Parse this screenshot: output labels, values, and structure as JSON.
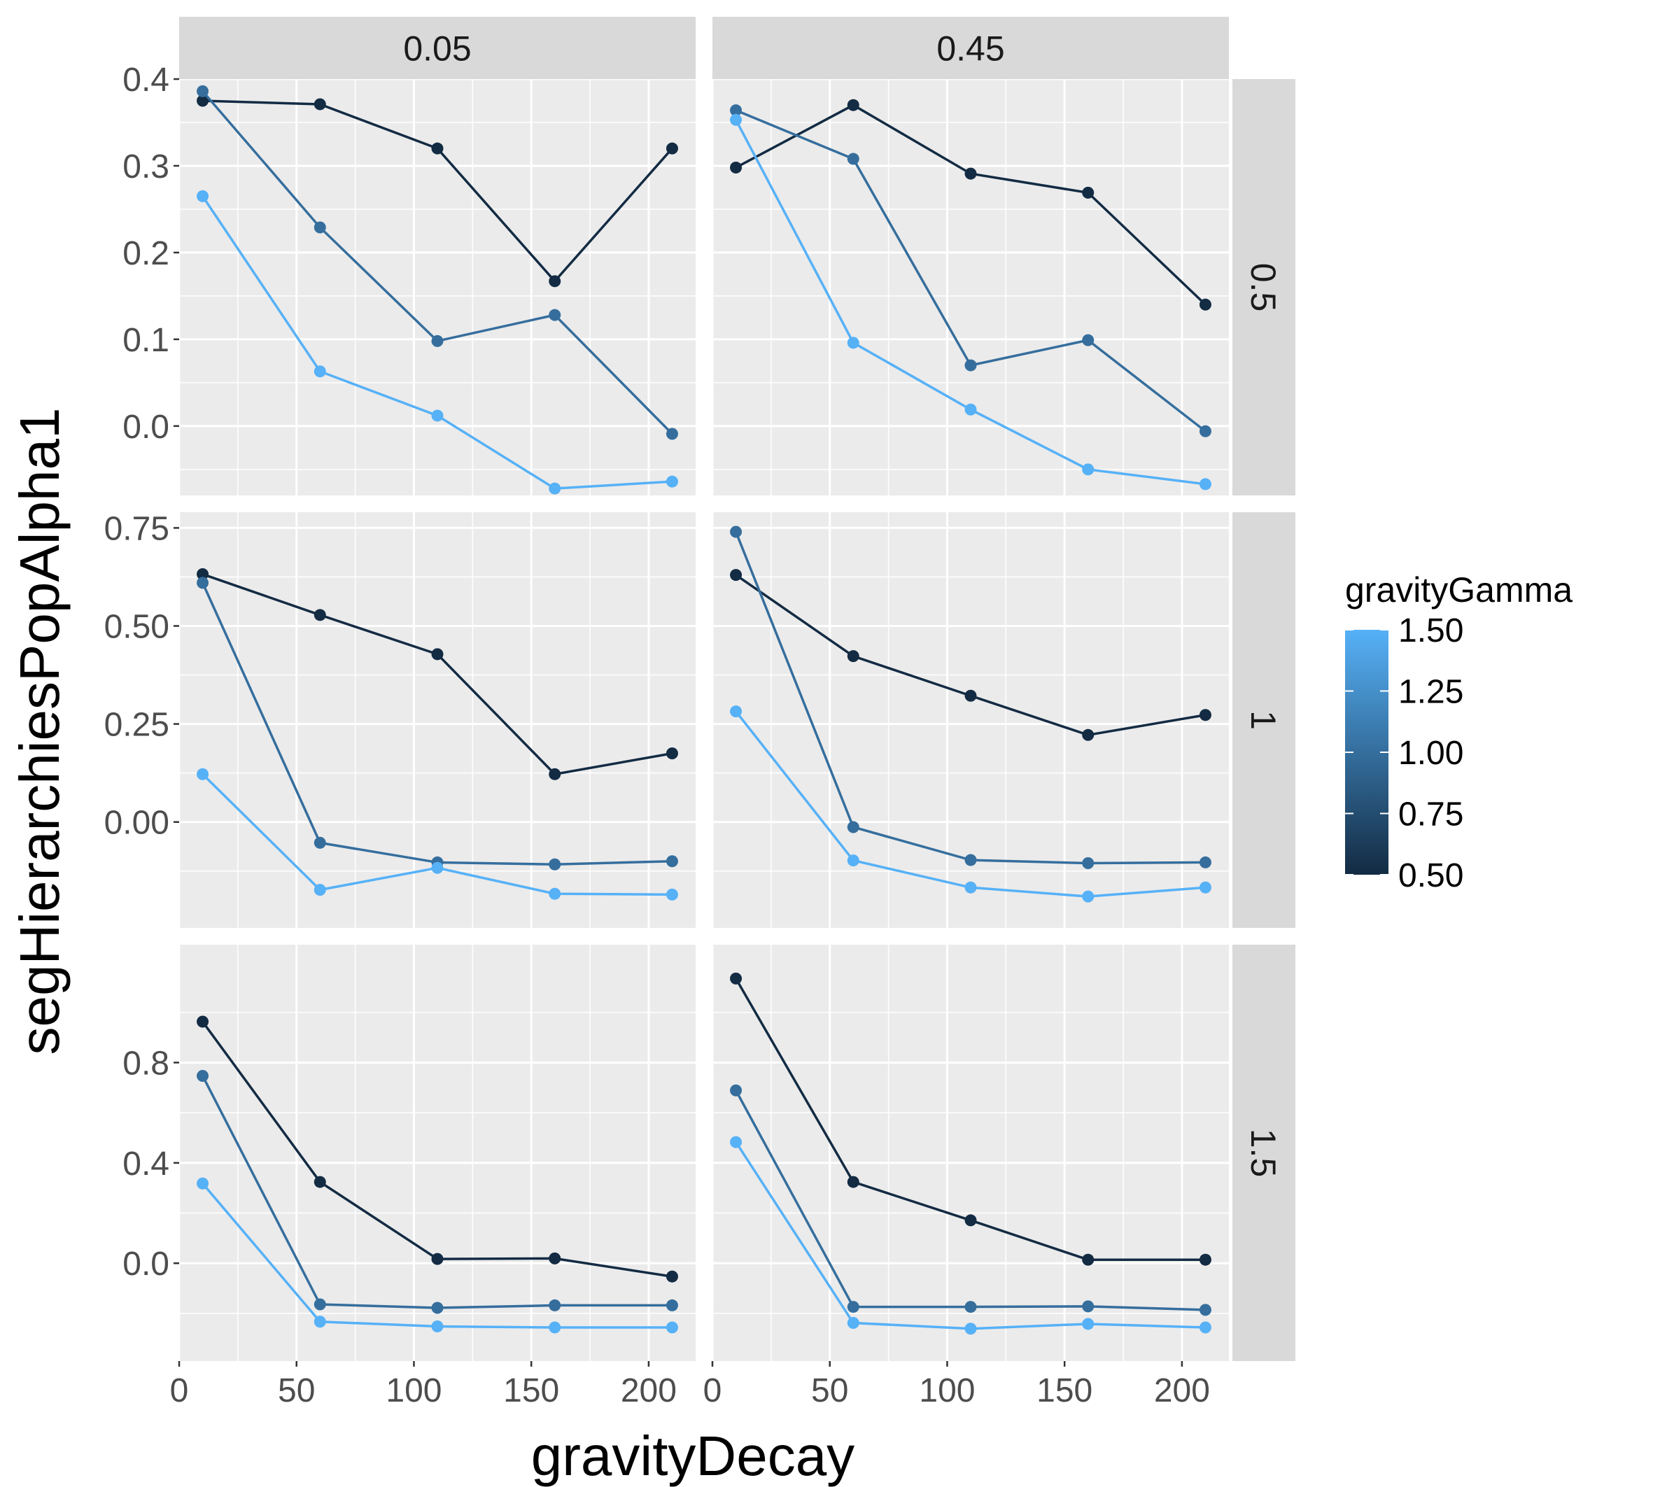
{
  "chart_data": {
    "type": "line",
    "xlabel": "gravityDecay",
    "ylabel": "segHierarchiesPopAlpha1",
    "facet_cols": [
      "0.05",
      "0.45"
    ],
    "facet_rows": [
      "0.5",
      "1",
      "1.5"
    ],
    "x": [
      10,
      60,
      110,
      160,
      210
    ],
    "xlim": [
      0,
      220
    ],
    "x_ticks": [
      0,
      50,
      100,
      150,
      200
    ],
    "x_tick_labels": [
      "0",
      "50",
      "100",
      "150",
      "200"
    ],
    "rows": [
      {
        "ylim": [
          -0.08,
          0.4
        ],
        "y_ticks": [
          0.0,
          0.1,
          0.2,
          0.3,
          0.4
        ],
        "y_tick_labels": [
          "0.0",
          "0.1",
          "0.2",
          "0.3",
          "0.4"
        ]
      },
      {
        "ylim": [
          -0.27,
          0.79
        ],
        "y_ticks": [
          0.0,
          0.25,
          0.5,
          0.75
        ],
        "y_tick_labels": [
          "0.00",
          "0.25",
          "0.50",
          "0.75"
        ]
      },
      {
        "ylim": [
          -0.39,
          1.27
        ],
        "y_ticks": [
          0.0,
          0.4,
          0.8
        ],
        "y_tick_labels": [
          "0.0",
          "0.4",
          "0.8"
        ]
      }
    ],
    "panels": [
      {
        "col": 0,
        "row": 0,
        "series": [
          {
            "gamma": 0.5,
            "values": [
              0.375,
              0.371,
              0.32,
              0.167,
              0.32
            ]
          },
          {
            "gamma": 1.0,
            "values": [
              0.386,
              0.229,
              0.098,
              0.128,
              -0.009
            ]
          },
          {
            "gamma": 1.5,
            "values": [
              0.265,
              0.063,
              0.012,
              -0.072,
              -0.064
            ]
          }
        ]
      },
      {
        "col": 1,
        "row": 0,
        "series": [
          {
            "gamma": 0.5,
            "values": [
              0.298,
              0.37,
              0.291,
              0.269,
              0.14
            ]
          },
          {
            "gamma": 1.0,
            "values": [
              0.364,
              0.308,
              0.07,
              0.099,
              -0.006
            ]
          },
          {
            "gamma": 1.5,
            "values": [
              0.353,
              0.096,
              0.019,
              -0.05,
              -0.067
            ]
          }
        ]
      },
      {
        "col": 0,
        "row": 1,
        "series": [
          {
            "gamma": 0.5,
            "values": [
              0.632,
              0.528,
              0.428,
              0.122,
              0.175
            ]
          },
          {
            "gamma": 1.0,
            "values": [
              0.61,
              -0.053,
              -0.103,
              -0.108,
              -0.1
            ]
          },
          {
            "gamma": 1.5,
            "values": [
              0.122,
              -0.173,
              -0.117,
              -0.183,
              -0.185
            ]
          }
        ]
      },
      {
        "col": 1,
        "row": 1,
        "series": [
          {
            "gamma": 0.5,
            "values": [
              0.63,
              0.423,
              0.322,
              0.222,
              0.273
            ]
          },
          {
            "gamma": 1.0,
            "values": [
              0.74,
              -0.013,
              -0.097,
              -0.105,
              -0.103
            ]
          },
          {
            "gamma": 1.5,
            "values": [
              0.282,
              -0.098,
              -0.167,
              -0.19,
              -0.167
            ]
          }
        ]
      },
      {
        "col": 0,
        "row": 2,
        "series": [
          {
            "gamma": 0.5,
            "values": [
              0.963,
              0.324,
              0.017,
              0.019,
              -0.053
            ]
          },
          {
            "gamma": 1.0,
            "values": [
              0.747,
              -0.164,
              -0.178,
              -0.168,
              -0.168
            ]
          },
          {
            "gamma": 1.5,
            "values": [
              0.318,
              -0.233,
              -0.252,
              -0.256,
              -0.256
            ]
          }
        ]
      },
      {
        "col": 1,
        "row": 2,
        "series": [
          {
            "gamma": 0.5,
            "values": [
              1.135,
              0.324,
              0.171,
              0.014,
              0.014
            ]
          },
          {
            "gamma": 1.0,
            "values": [
              0.689,
              -0.174,
              -0.174,
              -0.172,
              -0.186
            ]
          },
          {
            "gamma": 1.5,
            "values": [
              0.483,
              -0.238,
              -0.261,
              -0.242,
              -0.256
            ]
          }
        ]
      }
    ],
    "legend": {
      "title": "gravityGamma",
      "placement": "right",
      "type": "colorbar",
      "range": [
        0.5,
        1.5
      ],
      "breaks": [
        1.5,
        1.25,
        1.0,
        0.75,
        0.5
      ],
      "break_labels": [
        "1.50",
        "1.25",
        "1.00",
        "0.75",
        "0.50"
      ],
      "color_low": "#132b43",
      "color_high": "#56b1f7"
    },
    "grid": true,
    "background": "#ebebeb",
    "strip_color": "#d9d9d9",
    "grid_color": "#ffffff"
  }
}
